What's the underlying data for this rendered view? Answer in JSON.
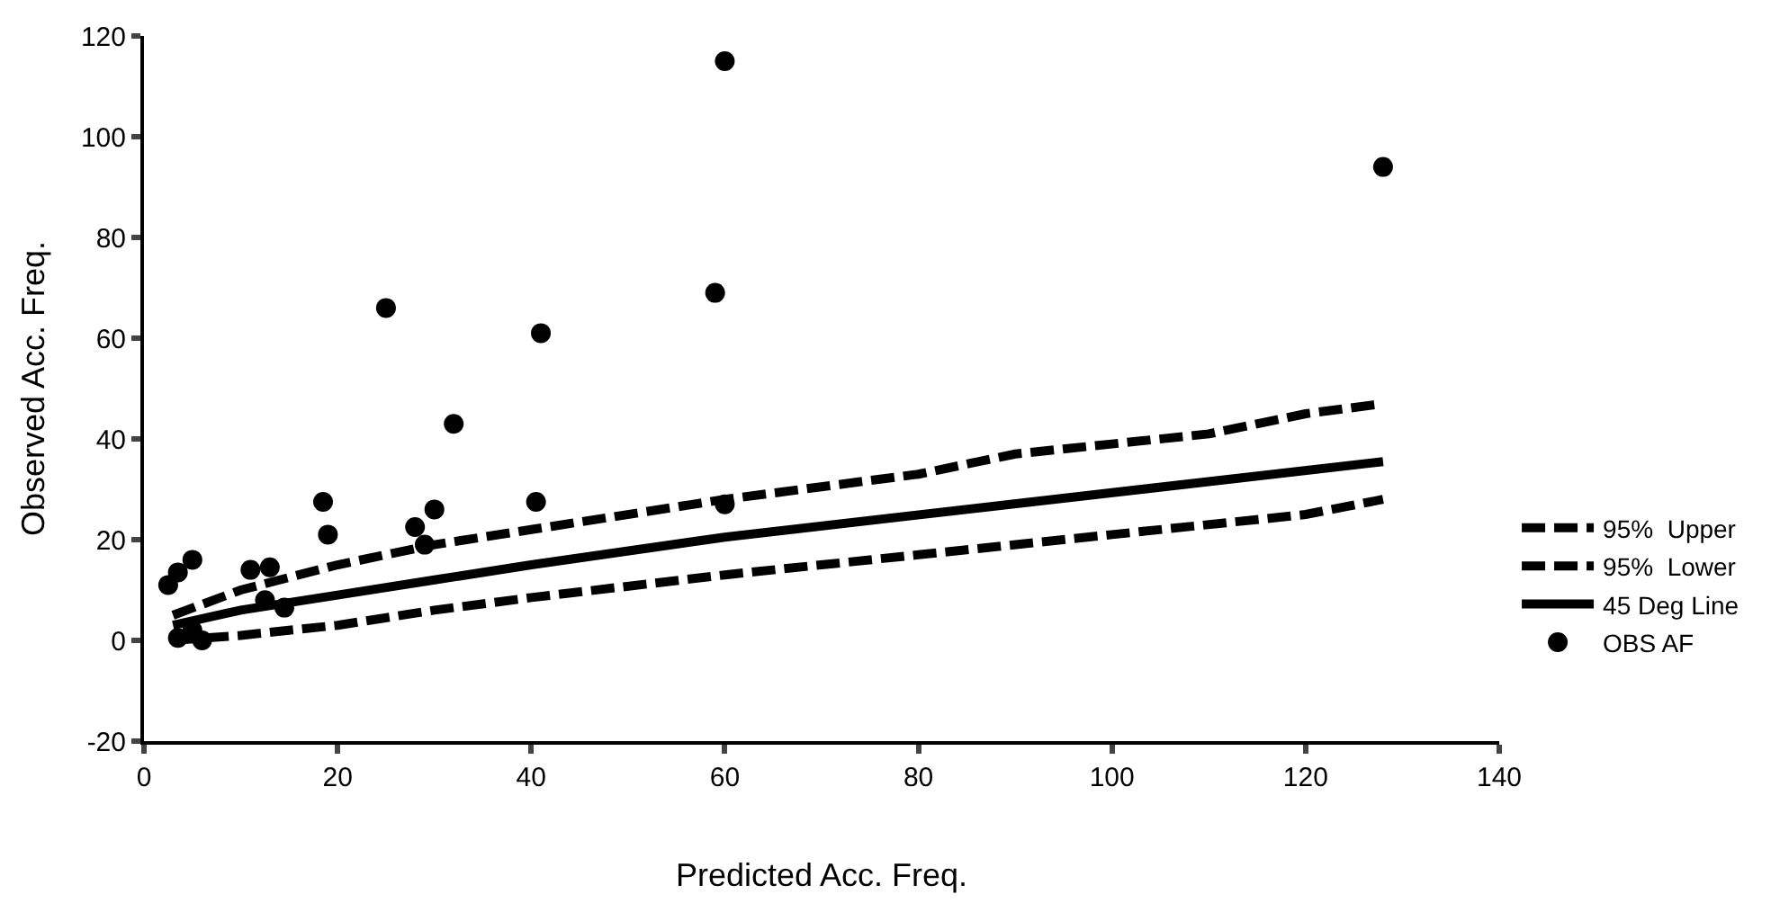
{
  "chart_data": {
    "type": "scatter",
    "xlabel": "Predicted Acc. Freq.",
    "ylabel": "Observed Acc. Freq.",
    "xlim": [
      0,
      140
    ],
    "xticks": [
      0,
      20,
      40,
      60,
      80,
      100,
      120,
      140
    ],
    "ylim": [
      -20,
      120
    ],
    "yticks": [
      -20,
      0,
      20,
      40,
      60,
      80,
      100,
      120
    ],
    "legend": "right",
    "series": [
      {
        "name": "95%  Upper",
        "type": "line",
        "line_style": "dashed",
        "marker": "none",
        "color": "#000000",
        "x": [
          3,
          10,
          20,
          30,
          40,
          60,
          80,
          90,
          100,
          110,
          120,
          128
        ],
        "values": [
          5,
          10,
          15,
          19,
          22,
          28,
          33,
          37,
          39,
          41,
          45,
          47
        ]
      },
      {
        "name": "95%  Lower",
        "type": "line",
        "line_style": "dashed",
        "marker": "none",
        "color": "#000000",
        "x": [
          3,
          10,
          20,
          30,
          40,
          60,
          80,
          100,
          120,
          128
        ],
        "values": [
          0,
          1,
          3,
          6,
          8.5,
          13,
          17,
          21,
          25,
          28
        ]
      },
      {
        "name": "45 Deg Line",
        "type": "line",
        "line_style": "solid",
        "marker": "none",
        "color": "#000000",
        "x": [
          3,
          10,
          20,
          30,
          40,
          60,
          128
        ],
        "values": [
          3,
          6,
          9,
          12,
          15,
          20.5,
          35.5
        ]
      },
      {
        "name": "OBS AF",
        "marker": "circle",
        "color": "#000000",
        "x": [
          60,
          59,
          25,
          41,
          32,
          128,
          60,
          18.5,
          19,
          30,
          28,
          29,
          40.5,
          2.5,
          3.5,
          5,
          11,
          13,
          12.5,
          14.5,
          6,
          3.5,
          5
        ],
        "values": [
          115,
          69,
          66,
          61,
          43,
          94,
          27,
          27.5,
          21,
          26,
          22.5,
          19,
          27.5,
          11,
          13.5,
          16,
          14,
          14.5,
          8,
          6.5,
          0,
          0.5,
          2
        ]
      }
    ]
  }
}
